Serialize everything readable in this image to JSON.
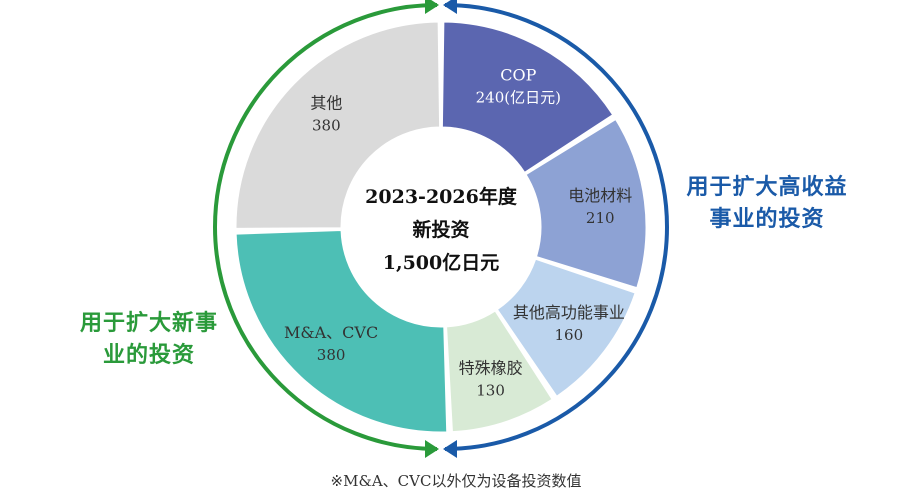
{
  "chart_data": {
    "type": "donut",
    "center": [
      "2023-2026年度",
      "新投资",
      "1,500亿日元"
    ],
    "unit_note": "(亿日元)",
    "series": [
      {
        "label": "COP",
        "value": 240,
        "color": "#5b66b0",
        "text_color": "#ffffff"
      },
      {
        "label": "电池材料",
        "value": 210,
        "color": "#8da2d4",
        "text_color": "#333333"
      },
      {
        "label": "其他高功能事业",
        "value": 160,
        "color": "#bcd4ee",
        "text_color": "#333333"
      },
      {
        "label": "特殊橡胶",
        "value": 130,
        "color": "#d8ead5",
        "text_color": "#333333"
      },
      {
        "label": "M&A、CVC",
        "value": 380,
        "color": "#4dbfb5",
        "text_color": "#333333"
      },
      {
        "label": "其他",
        "value": 380,
        "color": "#dadada",
        "text_color": "#333333"
      }
    ],
    "groups": {
      "right": {
        "label_lines": [
          "用于扩大高收益",
          "事业的投资"
        ],
        "color": "#1a5aa8"
      },
      "left": {
        "label_lines": [
          "用于扩大新事",
          "业的投资"
        ],
        "color": "#2a9a3a"
      }
    }
  },
  "footnote": "※M&A、CVC以外仅为设备投资数值"
}
